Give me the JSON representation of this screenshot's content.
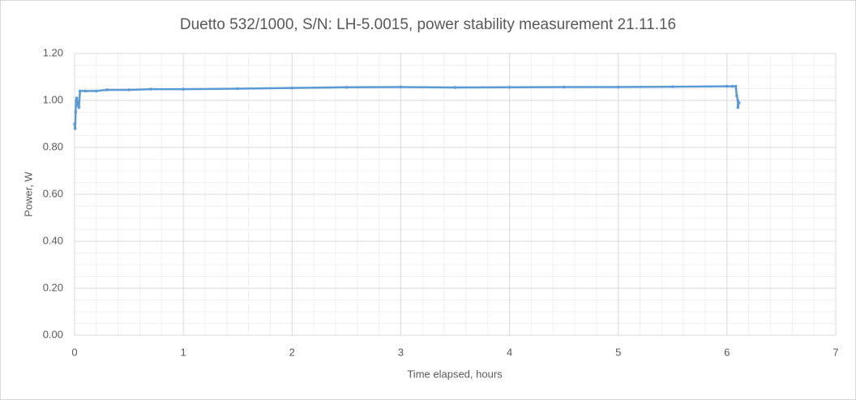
{
  "chart_data": {
    "type": "scatter",
    "title": "Duetto 532/1000, S/N: LH-5.0015, power stability measurement  21.11.16",
    "x_label": "Time elapsed, hours",
    "y_label": "Power, W",
    "xlim": [
      0,
      7
    ],
    "xticks": [
      0,
      1,
      2,
      3,
      4,
      5,
      6,
      7
    ],
    "ylim": [
      0,
      1.2
    ],
    "yticks": [
      {
        "value": 0,
        "label": "0.00"
      },
      {
        "value": 0.2,
        "label": "0.20"
      },
      {
        "value": 0.4,
        "label": "0.40"
      },
      {
        "value": 0.6,
        "label": "0.60"
      },
      {
        "value": 0.8,
        "label": "0.80"
      },
      {
        "value": 1.0,
        "label": "1.00"
      },
      {
        "value": 1.2,
        "label": "1.20"
      }
    ],
    "grid": true,
    "minor_grid": true,
    "series": [
      {
        "color": "#5b9bd5",
        "x": [
          0.0,
          0.005,
          0.01,
          0.015,
          0.02,
          0.03,
          0.04,
          0.05,
          0.1,
          0.2,
          0.3,
          0.5,
          0.7,
          1.0,
          1.5,
          2.0,
          2.5,
          3.0,
          3.5,
          4.0,
          4.5,
          5.0,
          5.5,
          6.0,
          6.05,
          6.08,
          6.09,
          6.1,
          6.1,
          6.11
        ],
        "y": [
          0.9,
          0.88,
          0.95,
          1.0,
          1.01,
          0.98,
          0.97,
          1.04,
          1.04,
          1.04,
          1.045,
          1.045,
          1.048,
          1.048,
          1.05,
          1.053,
          1.056,
          1.057,
          1.055,
          1.056,
          1.057,
          1.057,
          1.058,
          1.06,
          1.06,
          1.06,
          1.02,
          1.0,
          0.97,
          0.99
        ]
      }
    ]
  }
}
